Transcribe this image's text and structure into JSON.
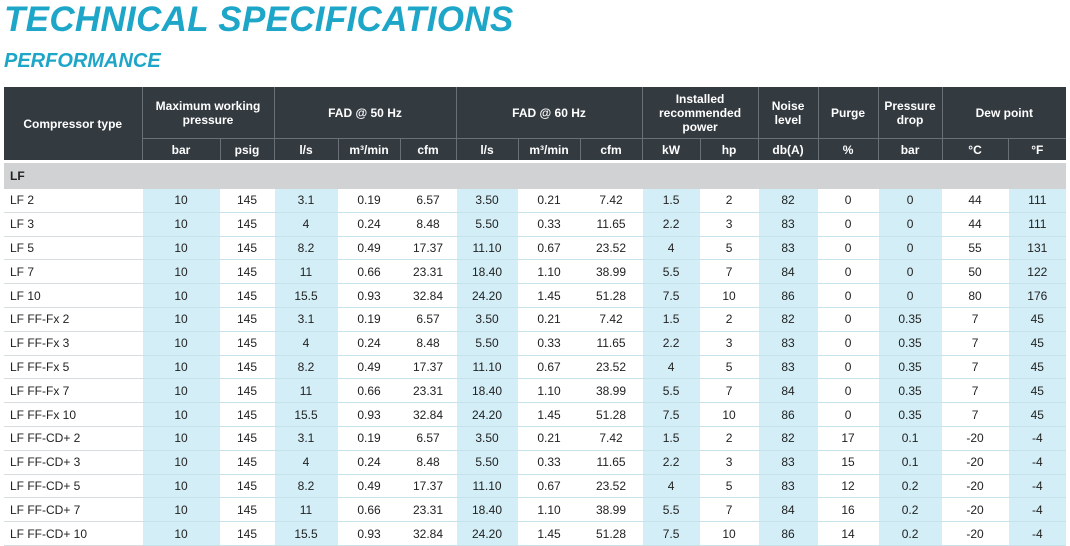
{
  "title": "TECHNICAL SPECIFICATIONS",
  "subtitle": "PERFORMANCE",
  "headers": {
    "compressor_type": "Compressor type",
    "max_pressure": "Maximum working pressure",
    "fad50": "FAD @ 50 Hz",
    "fad60": "FAD @ 60 Hz",
    "power": "Installed recommended power",
    "noise": "Noise level",
    "purge": "Purge",
    "pressure_drop": "Pressure drop",
    "dew_point": "Dew point",
    "units": [
      "bar",
      "psig",
      "l/s",
      "m³/min",
      "cfm",
      "l/s",
      "m³/min",
      "cfm",
      "kW",
      "hp",
      "db(A)",
      "%",
      "bar",
      "°C",
      "°F"
    ]
  },
  "group_label": "LF",
  "rows": [
    [
      "LF 2",
      "10",
      "145",
      "3.1",
      "0.19",
      "6.57",
      "3.50",
      "0.21",
      "7.42",
      "1.5",
      "2",
      "82",
      "0",
      "0",
      "44",
      "111"
    ],
    [
      "LF 3",
      "10",
      "145",
      "4",
      "0.24",
      "8.48",
      "5.50",
      "0.33",
      "11.65",
      "2.2",
      "3",
      "83",
      "0",
      "0",
      "44",
      "111"
    ],
    [
      "LF 5",
      "10",
      "145",
      "8.2",
      "0.49",
      "17.37",
      "11.10",
      "0.67",
      "23.52",
      "4",
      "5",
      "83",
      "0",
      "0",
      "55",
      "131"
    ],
    [
      "LF 7",
      "10",
      "145",
      "11",
      "0.66",
      "23.31",
      "18.40",
      "1.10",
      "38.99",
      "5.5",
      "7",
      "84",
      "0",
      "0",
      "50",
      "122"
    ],
    [
      "LF 10",
      "10",
      "145",
      "15.5",
      "0.93",
      "32.84",
      "24.20",
      "1.45",
      "51.28",
      "7.5",
      "10",
      "86",
      "0",
      "0",
      "80",
      "176"
    ],
    [
      "LF FF-Fx 2",
      "10",
      "145",
      "3.1",
      "0.19",
      "6.57",
      "3.50",
      "0.21",
      "7.42",
      "1.5",
      "2",
      "82",
      "0",
      "0.35",
      "7",
      "45"
    ],
    [
      "LF FF-Fx 3",
      "10",
      "145",
      "4",
      "0.24",
      "8.48",
      "5.50",
      "0.33",
      "11.65",
      "2.2",
      "3",
      "83",
      "0",
      "0.35",
      "7",
      "45"
    ],
    [
      "LF FF-Fx 5",
      "10",
      "145",
      "8.2",
      "0.49",
      "17.37",
      "11.10",
      "0.67",
      "23.52",
      "4",
      "5",
      "83",
      "0",
      "0.35",
      "7",
      "45"
    ],
    [
      "LF FF-Fx 7",
      "10",
      "145",
      "11",
      "0.66",
      "23.31",
      "18.40",
      "1.10",
      "38.99",
      "5.5",
      "7",
      "84",
      "0",
      "0.35",
      "7",
      "45"
    ],
    [
      "LF FF-Fx 10",
      "10",
      "145",
      "15.5",
      "0.93",
      "32.84",
      "24.20",
      "1.45",
      "51.28",
      "7.5",
      "10",
      "86",
      "0",
      "0.35",
      "7",
      "45"
    ],
    [
      "LF FF-CD+ 2",
      "10",
      "145",
      "3.1",
      "0.19",
      "6.57",
      "3.50",
      "0.21",
      "7.42",
      "1.5",
      "2",
      "82",
      "17",
      "0.1",
      "-20",
      "-4"
    ],
    [
      "LF FF-CD+ 3",
      "10",
      "145",
      "4",
      "0.24",
      "8.48",
      "5.50",
      "0.33",
      "11.65",
      "2.2",
      "3",
      "83",
      "15",
      "0.1",
      "-20",
      "-4"
    ],
    [
      "LF FF-CD+ 5",
      "10",
      "145",
      "8.2",
      "0.49",
      "17.37",
      "11.10",
      "0.67",
      "23.52",
      "4",
      "5",
      "83",
      "12",
      "0.2",
      "-20",
      "-4"
    ],
    [
      "LF FF-CD+ 7",
      "10",
      "145",
      "11",
      "0.66",
      "23.31",
      "18.40",
      "1.10",
      "38.99",
      "5.5",
      "7",
      "84",
      "16",
      "0.2",
      "-20",
      "-4"
    ],
    [
      "LF FF-CD+ 10",
      "10",
      "145",
      "15.5",
      "0.93",
      "32.84",
      "24.20",
      "1.45",
      "51.28",
      "7.5",
      "10",
      "86",
      "14",
      "0.2",
      "-20",
      "-4"
    ]
  ],
  "colors": {
    "accent": "#1ea6c8",
    "header_bg": "#333a40",
    "group_bg": "#d0d2d4",
    "shaded_cell": "#d3eef6"
  }
}
